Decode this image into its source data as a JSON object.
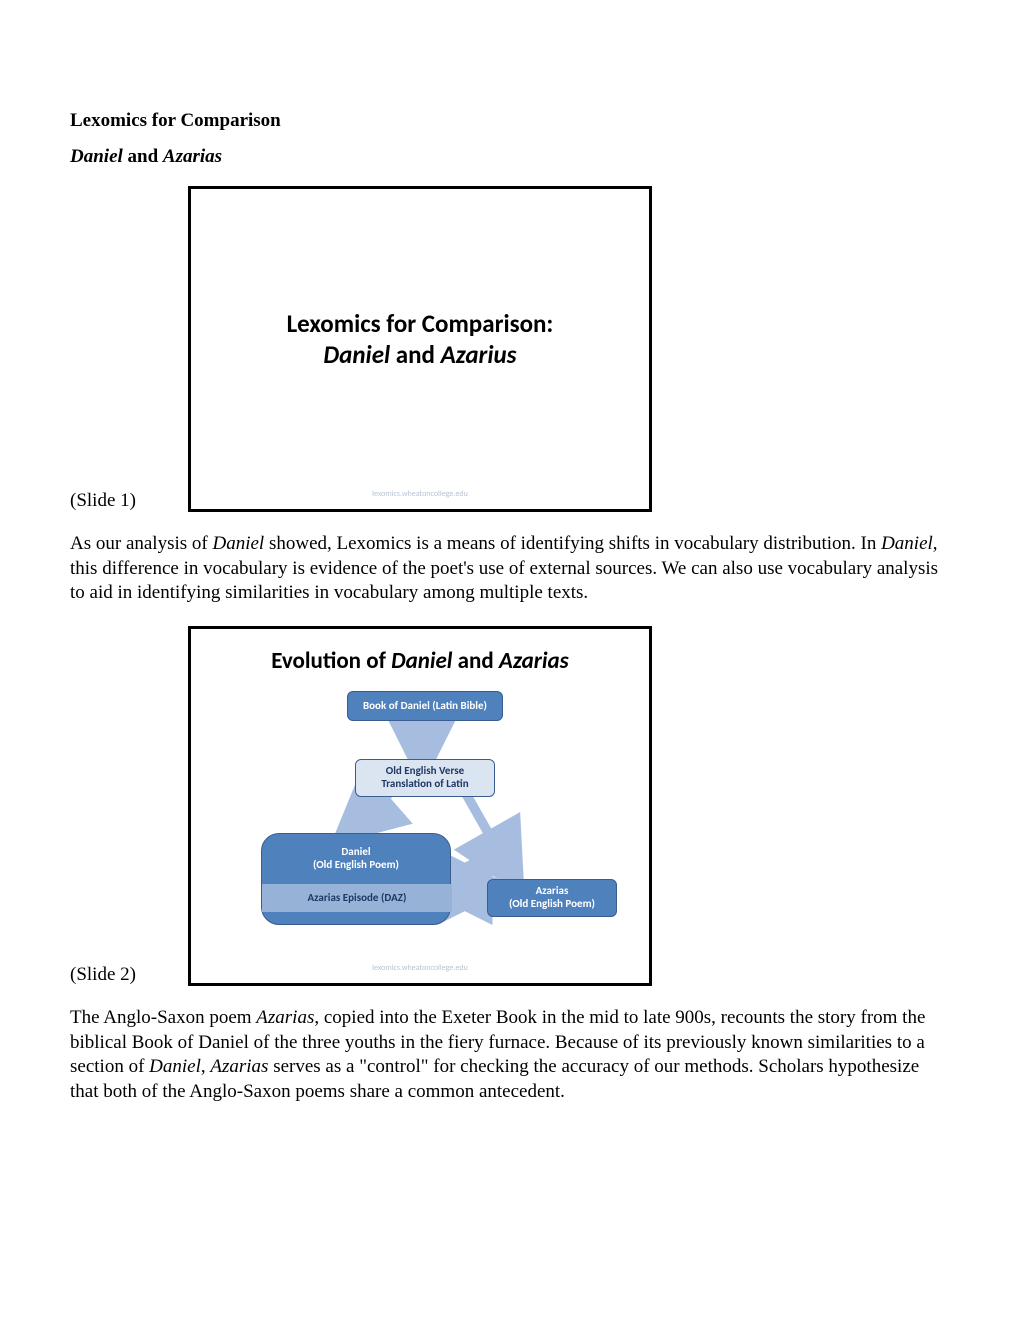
{
  "document": {
    "heading1": "Lexomics for Comparison",
    "heading2_italic1": "Daniel",
    "heading2_mid": " and ",
    "heading2_italic2": "Azarias"
  },
  "slide1": {
    "label": "(Slide 1)",
    "title_line1": "Lexomics for Comparison:",
    "title_line2_italic1": "Daniel",
    "title_line2_mid": " and ",
    "title_line2_italic2": "Azarius",
    "footer": "lexomics.wheatoncollege.edu"
  },
  "para1": {
    "s1a": "As our analysis of ",
    "s1b": "Daniel",
    "s1c": " showed, Lexomics is a means of identifying shifts in vocabulary distribution. In ",
    "s1d": "Daniel",
    "s1e": ", this difference in vocabulary is evidence of the poet's use of external sources. We can also use vocabulary analysis to aid in identifying similarities in vocabulary among multiple texts."
  },
  "slide2": {
    "label": "(Slide 2)",
    "title_pre": "Evolution of ",
    "title_it1": "Daniel",
    "title_mid": " and ",
    "title_it2": "Azarias",
    "footer": "lexomics.wheatoncollege.edu",
    "flowchart": {
      "type": "flowchart",
      "colors": {
        "dark_fill": "#4f81bd",
        "light_fill": "#dbe5f1",
        "band_fill": "#96b3d7",
        "border": "#3b5c8f",
        "arrow": "#a7bde0",
        "text_dark": "#1f3864",
        "text_light": "#ffffff"
      },
      "nodes": {
        "latin": "Book of Daniel (Latin Bible)",
        "oe_trans": "Old English Verse\nTranslation of Latin",
        "daniel_top": "Daniel\n(Old English Poem)",
        "daniel_band": "Azarias Episode (DAZ)",
        "azarias": "Azarias\n(Old English Poem)"
      }
    }
  },
  "para2": {
    "s2a": "The Anglo-Saxon poem ",
    "s2b": "Azarias",
    "s2c": ", copied into the Exeter Book in the mid to late 900s, recounts the story from the biblical Book of Daniel of the three youths in the fiery furnace. Because of its previously known similarities to a section of ",
    "s2d": "Daniel",
    "s2e": ", ",
    "s2f": "Azarias",
    "s2g": " serves as a \"control\" for checking the accuracy of our methods. Scholars hypothesize that both of the Anglo-Saxon poems share a common antecedent."
  }
}
